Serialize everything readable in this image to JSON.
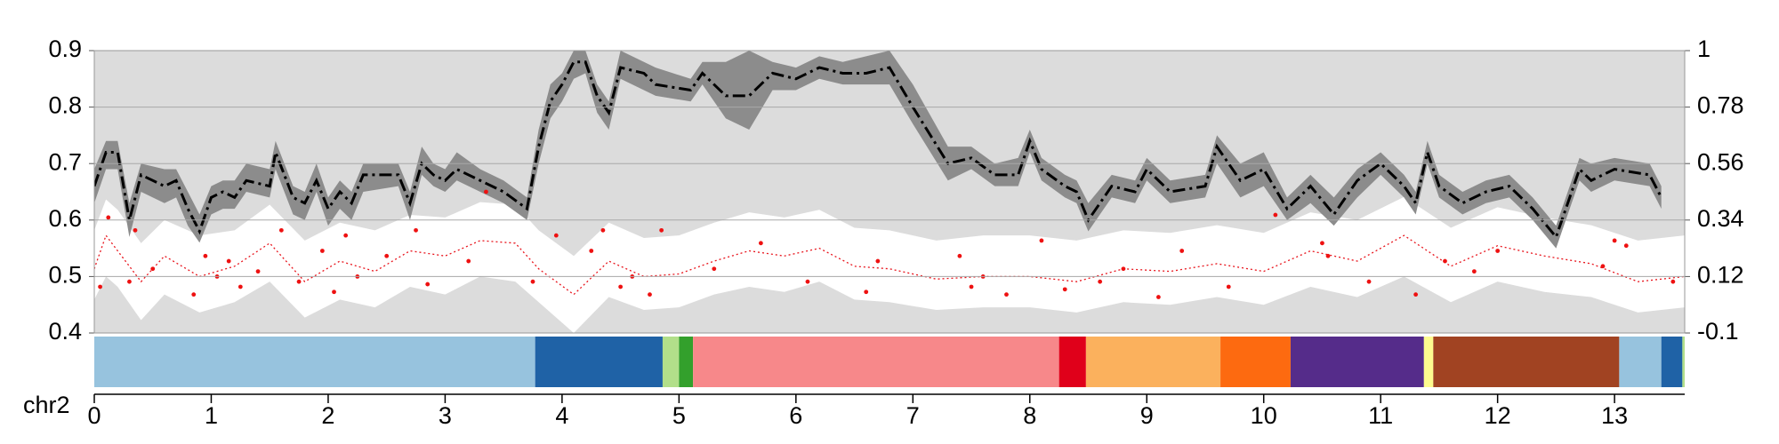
{
  "chart_data": {
    "type": "line",
    "x_label": "chr2",
    "xlim": [
      0,
      13.6
    ],
    "xticks": [
      0,
      1,
      2,
      3,
      4,
      5,
      6,
      7,
      8,
      9,
      10,
      11,
      12,
      13
    ],
    "ylim": [
      0.4,
      0.9
    ],
    "yticks": [
      0.4,
      0.5,
      0.6,
      0.7,
      0.8,
      0.9
    ],
    "y2lim": [
      -0.1,
      1
    ],
    "y2ticks": [
      -0.1,
      0.12,
      0.34,
      0.56,
      0.78,
      1
    ],
    "grid": true,
    "background": "#dcdcdc",
    "series": [
      {
        "color": "#000000",
        "style": "dashdot",
        "band_color": "#8c8c8c",
        "x": [
          0,
          0.1,
          0.2,
          0.3,
          0.4,
          0.6,
          0.7,
          0.8,
          0.9,
          1.0,
          1.1,
          1.2,
          1.3,
          1.5,
          1.55,
          1.7,
          1.8,
          1.9,
          2.0,
          2.1,
          2.2,
          2.3,
          2.6,
          2.7,
          2.8,
          2.9,
          3.0,
          3.1,
          3.3,
          3.5,
          3.7,
          3.8,
          3.9,
          4.0,
          4.1,
          4.2,
          4.3,
          4.4,
          4.5,
          4.7,
          4.8,
          5.1,
          5.2,
          5.4,
          5.6,
          5.8,
          6.0,
          6.2,
          6.4,
          6.6,
          6.8,
          7.0,
          7.3,
          7.5,
          7.7,
          7.9,
          8.0,
          8.1,
          8.3,
          8.4,
          8.5,
          8.7,
          8.9,
          9.0,
          9.2,
          9.5,
          9.6,
          9.8,
          10.0,
          10.2,
          10.4,
          10.6,
          10.8,
          11.0,
          11.2,
          11.3,
          11.4,
          11.5,
          11.7,
          11.9,
          12.1,
          12.3,
          12.5,
          12.7,
          12.8,
          13.0,
          13.3,
          13.4
        ],
        "values": [
          0.66,
          0.72,
          0.72,
          0.6,
          0.68,
          0.66,
          0.67,
          0.62,
          0.58,
          0.64,
          0.65,
          0.64,
          0.67,
          0.66,
          0.72,
          0.64,
          0.63,
          0.67,
          0.62,
          0.65,
          0.63,
          0.68,
          0.68,
          0.63,
          0.7,
          0.68,
          0.67,
          0.69,
          0.67,
          0.65,
          0.62,
          0.73,
          0.81,
          0.84,
          0.88,
          0.88,
          0.82,
          0.79,
          0.87,
          0.86,
          0.84,
          0.83,
          0.86,
          0.82,
          0.82,
          0.86,
          0.85,
          0.87,
          0.86,
          0.86,
          0.87,
          0.8,
          0.7,
          0.71,
          0.68,
          0.68,
          0.74,
          0.69,
          0.66,
          0.65,
          0.6,
          0.66,
          0.65,
          0.69,
          0.65,
          0.66,
          0.73,
          0.67,
          0.69,
          0.62,
          0.66,
          0.61,
          0.67,
          0.7,
          0.66,
          0.63,
          0.72,
          0.66,
          0.63,
          0.65,
          0.66,
          0.62,
          0.57,
          0.69,
          0.67,
          0.69,
          0.68,
          0.64
        ],
        "band_lower": [
          0.63,
          0.69,
          0.69,
          0.57,
          0.65,
          0.63,
          0.64,
          0.59,
          0.56,
          0.61,
          0.62,
          0.62,
          0.65,
          0.64,
          0.69,
          0.61,
          0.6,
          0.65,
          0.59,
          0.62,
          0.6,
          0.65,
          0.66,
          0.6,
          0.68,
          0.66,
          0.65,
          0.67,
          0.65,
          0.63,
          0.6,
          0.7,
          0.78,
          0.81,
          0.85,
          0.86,
          0.79,
          0.76,
          0.85,
          0.83,
          0.82,
          0.81,
          0.84,
          0.78,
          0.76,
          0.83,
          0.83,
          0.85,
          0.84,
          0.84,
          0.84,
          0.77,
          0.67,
          0.69,
          0.66,
          0.66,
          0.72,
          0.67,
          0.64,
          0.63,
          0.58,
          0.64,
          0.63,
          0.67,
          0.63,
          0.64,
          0.7,
          0.64,
          0.66,
          0.6,
          0.63,
          0.59,
          0.64,
          0.68,
          0.64,
          0.61,
          0.7,
          0.64,
          0.61,
          0.63,
          0.64,
          0.6,
          0.55,
          0.67,
          0.65,
          0.67,
          0.66,
          0.62
        ],
        "band_upper": [
          0.69,
          0.74,
          0.74,
          0.63,
          0.7,
          0.69,
          0.69,
          0.65,
          0.61,
          0.66,
          0.67,
          0.67,
          0.7,
          0.69,
          0.74,
          0.66,
          0.65,
          0.7,
          0.64,
          0.67,
          0.65,
          0.7,
          0.7,
          0.65,
          0.73,
          0.7,
          0.69,
          0.72,
          0.69,
          0.67,
          0.64,
          0.76,
          0.84,
          0.86,
          0.9,
          0.9,
          0.84,
          0.81,
          0.9,
          0.88,
          0.87,
          0.85,
          0.88,
          0.88,
          0.9,
          0.88,
          0.87,
          0.89,
          0.88,
          0.89,
          0.9,
          0.84,
          0.73,
          0.73,
          0.7,
          0.71,
          0.76,
          0.71,
          0.68,
          0.67,
          0.63,
          0.68,
          0.67,
          0.71,
          0.67,
          0.68,
          0.75,
          0.7,
          0.72,
          0.64,
          0.68,
          0.64,
          0.69,
          0.72,
          0.68,
          0.65,
          0.74,
          0.68,
          0.65,
          0.67,
          0.68,
          0.64,
          0.59,
          0.71,
          0.7,
          0.71,
          0.7,
          0.66
        ]
      },
      {
        "color": "#e8141c",
        "style": "dotted",
        "axis": "y2",
        "band_color": "#ffffff",
        "x": [
          0,
          0.1,
          0.2,
          0.4,
          0.6,
          0.9,
          1.2,
          1.5,
          1.8,
          2.1,
          2.4,
          2.7,
          3.0,
          3.3,
          3.6,
          3.8,
          4.1,
          4.4,
          4.7,
          5.0,
          5.3,
          5.6,
          5.9,
          6.2,
          6.5,
          6.8,
          7.2,
          7.6,
          8.0,
          8.4,
          8.8,
          9.2,
          9.6,
          10.0,
          10.4,
          10.8,
          11.2,
          11.6,
          12.0,
          12.4,
          12.8,
          13.2,
          13.6
        ],
        "values": [
          0.15,
          0.28,
          0.22,
          0.1,
          0.2,
          0.12,
          0.16,
          0.25,
          0.1,
          0.18,
          0.14,
          0.22,
          0.2,
          0.26,
          0.25,
          0.15,
          0.05,
          0.18,
          0.12,
          0.13,
          0.18,
          0.22,
          0.2,
          0.23,
          0.16,
          0.15,
          0.11,
          0.12,
          0.12,
          0.1,
          0.15,
          0.14,
          0.17,
          0.14,
          0.22,
          0.18,
          0.28,
          0.16,
          0.24,
          0.2,
          0.17,
          0.1,
          0.12
        ],
        "band_lower": [
          0.03,
          0.12,
          0.08,
          -0.05,
          0.05,
          -0.02,
          0.02,
          0.1,
          -0.04,
          0.03,
          0.0,
          0.08,
          0.05,
          0.12,
          0.1,
          0.02,
          -0.1,
          0.04,
          -0.01,
          0.0,
          0.05,
          0.08,
          0.06,
          0.1,
          0.03,
          0.02,
          -0.01,
          0.0,
          0.0,
          -0.02,
          0.02,
          0.01,
          0.04,
          0.01,
          0.08,
          0.04,
          0.12,
          0.02,
          0.1,
          0.06,
          0.04,
          -0.02,
          0.0
        ],
        "band_upper": [
          0.3,
          0.42,
          0.38,
          0.25,
          0.34,
          0.28,
          0.3,
          0.4,
          0.26,
          0.33,
          0.3,
          0.36,
          0.35,
          0.41,
          0.4,
          0.3,
          0.2,
          0.33,
          0.27,
          0.28,
          0.33,
          0.37,
          0.35,
          0.38,
          0.31,
          0.3,
          0.26,
          0.28,
          0.28,
          0.26,
          0.3,
          0.29,
          0.32,
          0.29,
          0.37,
          0.34,
          0.43,
          0.31,
          0.39,
          0.35,
          0.32,
          0.26,
          0.28
        ]
      },
      {
        "type": "scatter",
        "color": "#ee1111",
        "axis": "y2",
        "x": [
          0.05,
          0.12,
          0.3,
          0.35,
          0.5,
          0.85,
          0.95,
          1.05,
          1.15,
          1.25,
          1.4,
          1.6,
          1.75,
          1.95,
          2.05,
          2.15,
          2.25,
          2.5,
          2.75,
          2.85,
          3.2,
          3.35,
          3.75,
          3.95,
          4.25,
          4.35,
          4.5,
          4.6,
          4.75,
          4.85,
          5.3,
          5.7,
          6.1,
          6.6,
          6.7,
          7.4,
          7.5,
          7.6,
          7.8,
          8.1,
          8.3,
          8.6,
          8.8,
          9.1,
          9.3,
          9.7,
          10.1,
          10.5,
          10.55,
          10.9,
          11.3,
          11.55,
          11.8,
          12.0,
          12.9,
          13.0,
          13.1,
          13.5
        ],
        "values": [
          0.08,
          0.35,
          0.1,
          0.3,
          0.15,
          0.05,
          0.2,
          0.12,
          0.18,
          0.08,
          0.14,
          0.3,
          0.1,
          0.22,
          0.06,
          0.28,
          0.12,
          0.2,
          0.3,
          0.09,
          0.18,
          0.45,
          0.1,
          0.28,
          0.22,
          0.3,
          0.08,
          0.12,
          0.05,
          0.3,
          0.15,
          0.25,
          0.1,
          0.06,
          0.18,
          0.2,
          0.08,
          0.12,
          0.05,
          0.26,
          0.07,
          0.1,
          0.15,
          0.04,
          0.22,
          0.08,
          0.36,
          0.25,
          0.2,
          0.1,
          0.05,
          0.18,
          0.14,
          0.22,
          0.16,
          0.26,
          0.24,
          0.1
        ]
      }
    ],
    "segments": [
      {
        "start": 0,
        "end": 3.77,
        "color": "#97c3de"
      },
      {
        "start": 3.77,
        "end": 4.86,
        "color": "#1f62a6"
      },
      {
        "start": 4.86,
        "end": 5.0,
        "color": "#b2df8a"
      },
      {
        "start": 5.0,
        "end": 5.12,
        "color": "#33a02c"
      },
      {
        "start": 5.12,
        "end": 8.25,
        "color": "#f7888a"
      },
      {
        "start": 8.25,
        "end": 8.48,
        "color": "#e0001a"
      },
      {
        "start": 8.48,
        "end": 9.63,
        "color": "#fbb15d"
      },
      {
        "start": 9.63,
        "end": 10.23,
        "color": "#fd6a10"
      },
      {
        "start": 10.23,
        "end": 11.37,
        "color": "#552c8a"
      },
      {
        "start": 11.37,
        "end": 11.45,
        "color": "#fdfb8f"
      },
      {
        "start": 11.45,
        "end": 13.04,
        "color": "#a14322"
      },
      {
        "start": 13.04,
        "end": 13.4,
        "color": "#97c3de"
      },
      {
        "start": 13.4,
        "end": 13.58,
        "color": "#1f62a6"
      },
      {
        "start": 13.58,
        "end": 13.6,
        "color": "#b2df8a"
      }
    ]
  }
}
